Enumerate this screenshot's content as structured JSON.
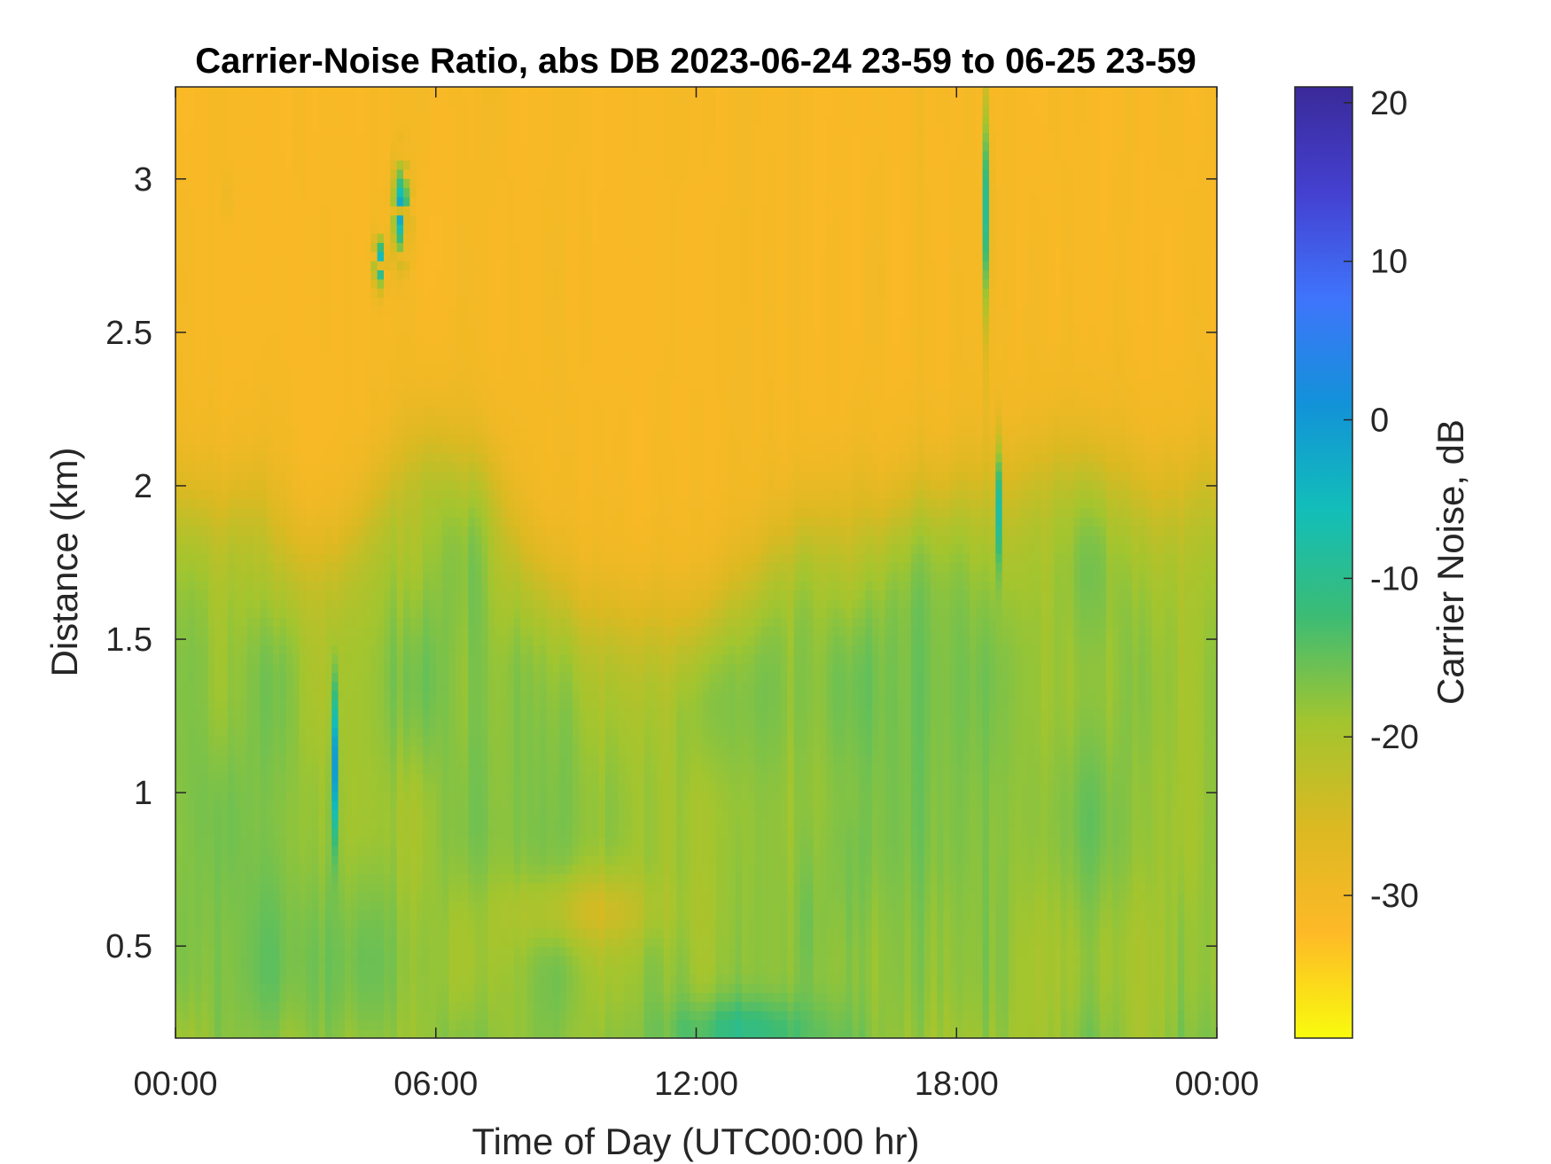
{
  "chart_data": {
    "type": "heatmap",
    "title": "Carrier-Noise Ratio, abs DB 2023-06-24 23-59 to 06-25 23-59",
    "xlabel": "Time of Day (UTC00:00 hr)",
    "ylabel": "Distance (km)",
    "colorbar_label": "Carrier Noise, dB",
    "x_ticks": [
      {
        "value": 0,
        "label": "00:00"
      },
      {
        "value": 6,
        "label": "06:00"
      },
      {
        "value": 12,
        "label": "12:00"
      },
      {
        "value": 18,
        "label": "18:00"
      },
      {
        "value": 24,
        "label": "00:00"
      }
    ],
    "y_ticks": [
      {
        "value": 0.5,
        "label": "0.5"
      },
      {
        "value": 1,
        "label": "1"
      },
      {
        "value": 1.5,
        "label": "1.5"
      },
      {
        "value": 2,
        "label": "2"
      },
      {
        "value": 2.5,
        "label": "2.5"
      },
      {
        "value": 3,
        "label": "3"
      }
    ],
    "colorbar_ticks": [
      {
        "value": 20,
        "label": "20"
      },
      {
        "value": 10,
        "label": "10"
      },
      {
        "value": 0,
        "label": "0"
      },
      {
        "value": -10,
        "label": "-10"
      },
      {
        "value": -20,
        "label": "-20"
      },
      {
        "value": -30,
        "label": "-30"
      }
    ],
    "xlim": [
      0,
      24
    ],
    "ylim": [
      0.2,
      3.3
    ],
    "clim": [
      -39,
      21
    ],
    "colormap": "parula (reversed: high = dark blue, low = yellow)",
    "grid": false,
    "colormap_stops": [
      "#f9fb0e",
      "#feb927",
      "#dbb922",
      "#a2c52f",
      "#3bbc75",
      "#12beb9",
      "#1292d8",
      "#3f74fb",
      "#4440d0",
      "#3a2a99"
    ],
    "field_description": [
      {
        "distance_km": [
          0.2,
          1.6
        ],
        "typical_db": -17,
        "note": "green/teal near ground, lowest 0.2-0.3 km around 11:30-14:30 reaching -13"
      },
      {
        "distance_km": [
          1.6,
          2.0
        ],
        "typical_db": -25,
        "note": "transition yellow-green, boundary dips to ~1.5 km near 10:00-12:00"
      },
      {
        "distance_km": [
          2.0,
          3.3
        ],
        "typical_db": -31,
        "note": "orange-yellow background aloft"
      },
      {
        "time_hr": [
          4.7,
          5.7
        ],
        "distance_km": [
          2.6,
          3.05
        ],
        "typical_db": 0,
        "note": "blue patches"
      },
      {
        "time_hr": [
          17.4,
          18.7
        ],
        "distance_km": [
          0.2,
          3.3
        ],
        "typical_db": -12,
        "note": "vertical plumes with blue streaks"
      }
    ]
  }
}
